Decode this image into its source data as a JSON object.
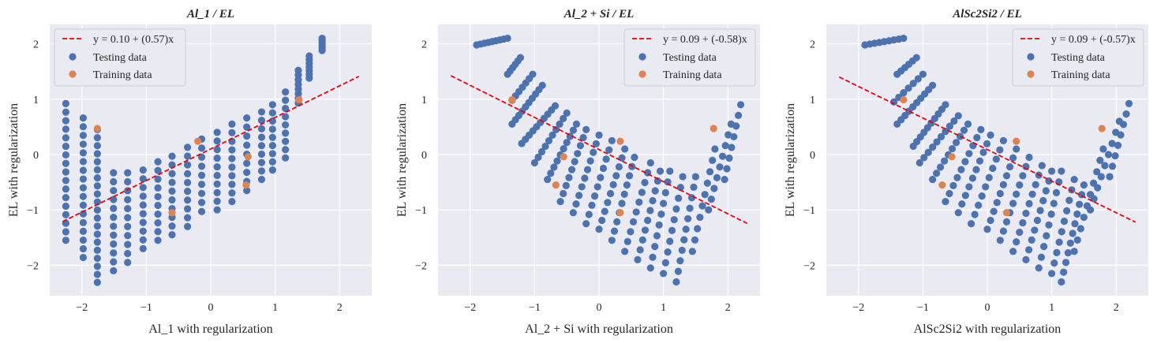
{
  "chart_data": [
    {
      "type": "scatter",
      "title": "Al_1 / EL",
      "xlabel": "Al_1 with regularization",
      "ylabel": "EL  with regularization",
      "xlim": [
        -2.5,
        2.5
      ],
      "ylim": [
        -2.55,
        2.35
      ],
      "xticks": [
        -2,
        -1,
        0,
        1,
        2
      ],
      "yticks": [
        -2,
        -1,
        0,
        1,
        2
      ],
      "grid": true,
      "legend_position": "top-left",
      "fit_line": {
        "label": "y = 0.10 + (0.57)x",
        "intercept": 0.1,
        "slope": 0.57,
        "x_range": [
          -2.3,
          2.3
        ],
        "color": "#e8000b"
      },
      "testing_color": "#4c72b0",
      "training_color": "#dd8452",
      "series": [
        {
          "name": "Testing data",
          "columns": [
            {
              "x": -2.25,
              "y_top": 0.92,
              "y_bottom": -1.55,
              "n": 17
            },
            {
              "x": -1.98,
              "y_top": 0.66,
              "y_bottom": -1.86,
              "n": 17
            },
            {
              "x": -1.76,
              "y_top": 0.45,
              "y_bottom": -2.31,
              "n": 20
            },
            {
              "x": -1.51,
              "y_top": -0.33,
              "y_bottom": -2.1,
              "n": 12
            },
            {
              "x": -1.29,
              "y_top": -0.33,
              "y_bottom": -1.95,
              "n": 11
            },
            {
              "x": -1.05,
              "y_top": -0.28,
              "y_bottom": -1.7,
              "n": 10
            },
            {
              "x": -0.82,
              "y_top": -0.13,
              "y_bottom": -1.55,
              "n": 10
            },
            {
              "x": -0.6,
              "y_top": -0.03,
              "y_bottom": -1.45,
              "n": 10
            },
            {
              "x": -0.36,
              "y_top": 0.13,
              "y_bottom": -1.3,
              "n": 10
            },
            {
              "x": -0.14,
              "y_top": 0.28,
              "y_bottom": -1.03,
              "n": 9
            },
            {
              "x": 0.1,
              "y_top": 0.4,
              "y_bottom": -1.0,
              "n": 10
            },
            {
              "x": 0.33,
              "y_top": 0.55,
              "y_bottom": -0.85,
              "n": 10
            },
            {
              "x": 0.56,
              "y_top": 0.66,
              "y_bottom": -0.65,
              "n": 9
            },
            {
              "x": 0.79,
              "y_top": 0.77,
              "y_bottom": -0.45,
              "n": 9
            },
            {
              "x": 0.96,
              "y_top": 0.9,
              "y_bottom": -0.28,
              "n": 9
            },
            {
              "x": 1.16,
              "y_top": 1.13,
              "y_bottom": -0.06,
              "n": 9
            },
            {
              "x": 1.36,
              "y_top": 1.52,
              "y_bottom": 0.93,
              "n": 8
            },
            {
              "x": 1.53,
              "y_top": 1.78,
              "y_bottom": 1.38,
              "n": 7
            },
            {
              "x": 1.73,
              "y_top": 2.1,
              "y_bottom": 1.88,
              "n": 6
            }
          ]
        },
        {
          "name": "Training data",
          "points": [
            {
              "x": -1.76,
              "y": 0.47
            },
            {
              "x": -0.6,
              "y": -1.05
            },
            {
              "x": -0.2,
              "y": 0.24
            },
            {
              "x": 0.55,
              "y": -0.55
            },
            {
              "x": 0.58,
              "y": -0.04
            },
            {
              "x": 1.37,
              "y": 0.99
            }
          ]
        }
      ]
    },
    {
      "type": "scatter",
      "title": "Al_2 + Si / EL",
      "xlabel": "Al_2 + Si with regularization",
      "ylabel": "EL  with regularization",
      "xlim": [
        -2.5,
        2.5
      ],
      "ylim": [
        -2.55,
        2.35
      ],
      "xticks": [
        -2,
        -1,
        0,
        1,
        2
      ],
      "yticks": [
        -2,
        -1,
        0,
        1,
        2
      ],
      "grid": true,
      "legend_position": "top-right",
      "fit_line": {
        "label": "y = 0.09 + (-0.58)x",
        "intercept": 0.09,
        "slope": -0.58,
        "x_range": [
          -2.3,
          2.3
        ],
        "color": "#e8000b"
      },
      "testing_color": "#4c72b0",
      "training_color": "#dd8452",
      "series": [
        {
          "name": "Testing data",
          "diagonals": [
            {
              "start": [
                -1.9,
                1.98
              ],
              "end": [
                -1.42,
                2.1
              ],
              "n": 9
            },
            {
              "start": [
                -1.42,
                1.45
              ],
              "end": [
                -1.22,
                1.75
              ],
              "n": 6
            },
            {
              "start": [
                -1.35,
                0.98
              ],
              "end": [
                -1.03,
                1.45
              ],
              "n": 7
            },
            {
              "start": [
                -1.35,
                0.55
              ],
              "end": [
                -0.88,
                1.25
              ],
              "n": 10
            },
            {
              "start": [
                -1.2,
                0.2
              ],
              "end": [
                -0.68,
                0.88
              ],
              "n": 10
            },
            {
              "start": [
                -1.0,
                -0.15
              ],
              "end": [
                -0.5,
                0.75
              ],
              "n": 10
            },
            {
              "start": [
                -0.8,
                -0.45
              ],
              "end": [
                -0.35,
                0.55
              ],
              "n": 10
            },
            {
              "start": [
                -0.6,
                -0.85
              ],
              "end": [
                -0.2,
                0.45
              ],
              "n": 10
            },
            {
              "start": [
                -0.4,
                -1.05
              ],
              "end": [
                0.0,
                0.35
              ],
              "n": 10
            },
            {
              "start": [
                -0.2,
                -1.25
              ],
              "end": [
                0.2,
                0.25
              ],
              "n": 10
            },
            {
              "start": [
                0.0,
                -1.35
              ],
              "end": [
                0.4,
                0.1
              ],
              "n": 10
            },
            {
              "start": [
                0.2,
                -1.55
              ],
              "end": [
                0.55,
                -0.05
              ],
              "n": 10
            },
            {
              "start": [
                0.4,
                -1.75
              ],
              "end": [
                0.8,
                -0.15
              ],
              "n": 10
            },
            {
              "start": [
                0.6,
                -1.9
              ],
              "end": [
                0.95,
                -0.3
              ],
              "n": 10
            },
            {
              "start": [
                0.8,
                -2.05
              ],
              "end": [
                1.1,
                -0.3
              ],
              "n": 10
            },
            {
              "start": [
                1.0,
                -2.15
              ],
              "end": [
                1.3,
                -0.4
              ],
              "n": 10
            },
            {
              "start": [
                1.2,
                -2.3
              ],
              "end": [
                1.5,
                -0.4
              ],
              "n": 11
            },
            {
              "start": [
                1.45,
                -1.75
              ],
              "end": [
                1.8,
                0.1
              ],
              "n": 10
            },
            {
              "start": [
                1.7,
                -1.0
              ],
              "end": [
                2.05,
                0.55
              ],
              "n": 9
            },
            {
              "start": [
                1.95,
                -0.45
              ],
              "end": [
                2.2,
                0.9
              ],
              "n": 8
            }
          ]
        },
        {
          "name": "Training data",
          "points": [
            {
              "x": -1.35,
              "y": 0.99
            },
            {
              "x": -0.55,
              "y": -0.04
            },
            {
              "x": -0.67,
              "y": -0.55
            },
            {
              "x": 0.33,
              "y": -1.05
            },
            {
              "x": 0.33,
              "y": 0.24
            },
            {
              "x": 1.78,
              "y": 0.47
            }
          ]
        }
      ]
    },
    {
      "type": "scatter",
      "title": "AlSc2Si2 / EL",
      "xlabel": "AlSc2Si2 with regularization",
      "ylabel": "EL  with regularization",
      "xlim": [
        -2.5,
        2.5
      ],
      "ylim": [
        -2.55,
        2.35
      ],
      "xticks": [
        -2,
        -1,
        0,
        1,
        2
      ],
      "yticks": [
        -2,
        -1,
        0,
        1,
        2
      ],
      "grid": true,
      "legend_position": "top-right",
      "fit_line": {
        "label": "y = 0.09 + (-0.57)x",
        "intercept": 0.09,
        "slope": -0.57,
        "x_range": [
          -2.3,
          2.3
        ],
        "color": "#e8000b"
      },
      "testing_color": "#4c72b0",
      "training_color": "#dd8452",
      "series": [
        {
          "name": "Testing data",
          "diagonals": [
            {
              "start": [
                -1.9,
                1.98
              ],
              "end": [
                -1.3,
                2.1
              ],
              "n": 9
            },
            {
              "start": [
                -1.4,
                1.45
              ],
              "end": [
                -1.1,
                1.75
              ],
              "n": 6
            },
            {
              "start": [
                -1.45,
                0.95
              ],
              "end": [
                -1.0,
                1.45
              ],
              "n": 7
            },
            {
              "start": [
                -1.4,
                0.55
              ],
              "end": [
                -0.85,
                1.25
              ],
              "n": 10
            },
            {
              "start": [
                -1.15,
                0.15
              ],
              "end": [
                -0.65,
                0.9
              ],
              "n": 10
            },
            {
              "start": [
                -1.05,
                -0.15
              ],
              "end": [
                -0.45,
                0.7
              ],
              "n": 10
            },
            {
              "start": [
                -0.85,
                -0.45
              ],
              "end": [
                -0.3,
                0.55
              ],
              "n": 10
            },
            {
              "start": [
                -0.65,
                -0.85
              ],
              "end": [
                -0.1,
                0.45
              ],
              "n": 10
            },
            {
              "start": [
                -0.45,
                -1.05
              ],
              "end": [
                0.05,
                0.35
              ],
              "n": 10
            },
            {
              "start": [
                -0.25,
                -1.25
              ],
              "end": [
                0.25,
                0.25
              ],
              "n": 10
            },
            {
              "start": [
                0.0,
                -1.35
              ],
              "end": [
                0.45,
                0.1
              ],
              "n": 10
            },
            {
              "start": [
                0.2,
                -1.55
              ],
              "end": [
                0.65,
                -0.05
              ],
              "n": 10
            },
            {
              "start": [
                0.4,
                -1.75
              ],
              "end": [
                0.85,
                -0.2
              ],
              "n": 10
            },
            {
              "start": [
                0.6,
                -1.9
              ],
              "end": [
                1.0,
                -0.3
              ],
              "n": 10
            },
            {
              "start": [
                0.8,
                -2.05
              ],
              "end": [
                1.15,
                -0.3
              ],
              "n": 10
            },
            {
              "start": [
                1.0,
                -2.15
              ],
              "end": [
                1.35,
                -0.45
              ],
              "n": 10
            },
            {
              "start": [
                1.15,
                -2.3
              ],
              "end": [
                1.5,
                -0.55
              ],
              "n": 11
            },
            {
              "start": [
                1.35,
                -1.75
              ],
              "end": [
                1.8,
                0.1
              ],
              "n": 10
            },
            {
              "start": [
                1.6,
                -1.0
              ],
              "end": [
                2.05,
                0.6
              ],
              "n": 9
            },
            {
              "start": [
                1.9,
                -0.4
              ],
              "end": [
                2.2,
                0.92
              ],
              "n": 8
            }
          ]
        },
        {
          "name": "Training data",
          "points": [
            {
              "x": -1.3,
              "y": 0.99
            },
            {
              "x": -0.55,
              "y": -0.04
            },
            {
              "x": -0.7,
              "y": -0.55
            },
            {
              "x": 0.3,
              "y": -1.05
            },
            {
              "x": 0.45,
              "y": 0.24
            },
            {
              "x": 1.78,
              "y": 0.47
            }
          ]
        }
      ]
    }
  ]
}
